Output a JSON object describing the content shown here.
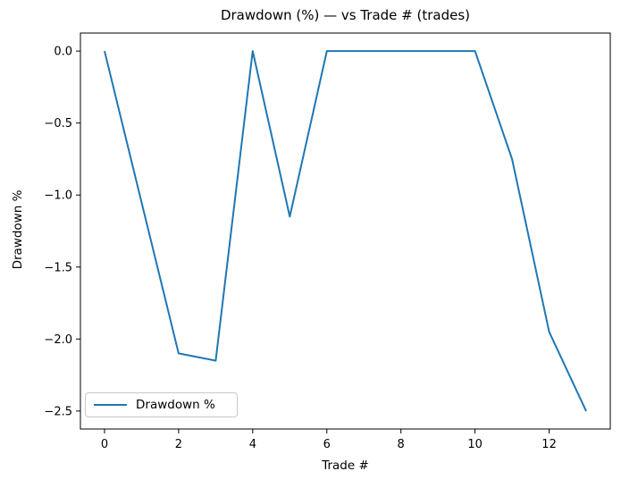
{
  "colors": {
    "line": "#1f77b4",
    "spine": "#000000",
    "text": "#000000",
    "legend_border": "#c9c9c9",
    "background": "#ffffff"
  },
  "chart_data": {
    "type": "line",
    "title": "Drawdown (%) — vs Trade # (trades)",
    "xlabel": "Trade #",
    "ylabel": "Drawdown %",
    "grid": false,
    "x": [
      0,
      1,
      2,
      3,
      4,
      5,
      6,
      7,
      8,
      9,
      10,
      11,
      12,
      13
    ],
    "series": [
      {
        "name": "Drawdown %",
        "color": "#1f77b4",
        "values": [
          0.0,
          -1.05,
          -2.1,
          -2.15,
          0.0,
          -1.15,
          0.0,
          0.0,
          0.0,
          0.0,
          0.0,
          -0.75,
          -1.95,
          -2.5
        ]
      }
    ],
    "xlim": [
      -0.65,
      13.65
    ],
    "ylim": [
      -2.625,
      0.125
    ],
    "xticks": {
      "values": [
        0,
        2,
        4,
        6,
        8,
        10,
        12
      ],
      "labels": [
        "0",
        "2",
        "4",
        "6",
        "8",
        "10",
        "12"
      ]
    },
    "yticks": {
      "values": [
        0.0,
        -0.5,
        -1.0,
        -1.5,
        -2.0,
        -2.5
      ],
      "labels": [
        "0.0",
        "−0.5",
        "−1.0",
        "−1.5",
        "−2.0",
        "−2.5"
      ]
    },
    "legend": {
      "position": "lower left",
      "entries": [
        "Drawdown %"
      ]
    }
  }
}
